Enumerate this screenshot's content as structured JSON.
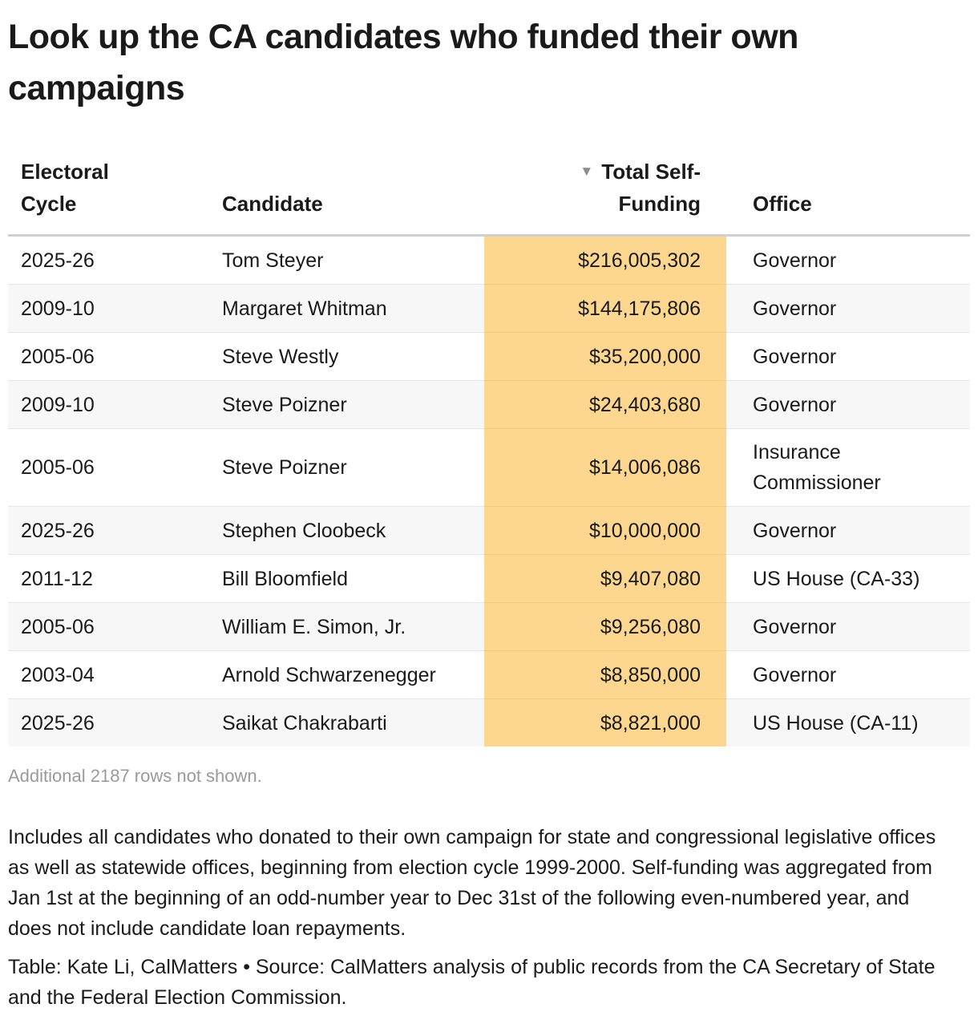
{
  "title": "Look up the CA candidates who funded their own campaigns",
  "table": {
    "columns": {
      "cycle": "Electoral Cycle",
      "candidate": "Candidate",
      "total": "Total Self-Funding",
      "office": "Office"
    },
    "sort_icon": "▼",
    "rows": [
      {
        "cycle": "2025-26",
        "candidate": "Tom Steyer",
        "total": "$216,005,302",
        "office": "Governor"
      },
      {
        "cycle": "2009-10",
        "candidate": "Margaret Whitman",
        "total": "$144,175,806",
        "office": "Governor"
      },
      {
        "cycle": "2005-06",
        "candidate": "Steve Westly",
        "total": "$35,200,000",
        "office": "Governor"
      },
      {
        "cycle": "2009-10",
        "candidate": "Steve Poizner",
        "total": "$24,403,680",
        "office": "Governor"
      },
      {
        "cycle": "2005-06",
        "candidate": "Steve Poizner",
        "total": "$14,006,086",
        "office": "Insurance Commissioner"
      },
      {
        "cycle": "2025-26",
        "candidate": "Stephen Cloobeck",
        "total": "$10,000,000",
        "office": "Governor"
      },
      {
        "cycle": "2011-12",
        "candidate": "Bill Bloomfield",
        "total": "$9,407,080",
        "office": "US House (CA-33)"
      },
      {
        "cycle": "2005-06",
        "candidate": "William E. Simon, Jr.",
        "total": "$9,256,080",
        "office": "Governor"
      },
      {
        "cycle": "2003-04",
        "candidate": "Arnold Schwarzenegger",
        "total": "$8,850,000",
        "office": "Governor"
      },
      {
        "cycle": "2025-26",
        "candidate": "Saikat Chakrabarti",
        "total": "$8,821,000",
        "office": "US House (CA-11)"
      }
    ]
  },
  "more_rows": "Additional 2187 rows not shown.",
  "notes": "Includes all candidates who donated to their own campaign for state and congressional legislative offices as well as statewide offices, beginning from election cycle 1999-2000. Self-funding was aggregated from Jan 1st at the beginning of an odd-number year to Dec 31st of the following even-numbered year, and does not include candidate loan repayments.",
  "credit": "Table: Kate Li, CalMatters • Source: CalMatters analysis of public records from the CA Secretary of State and the Federal Election Commission.",
  "colors": {
    "highlight": "#fdd78f",
    "stripe": "#f7f7f7",
    "header_rule": "#cfcfcf"
  }
}
